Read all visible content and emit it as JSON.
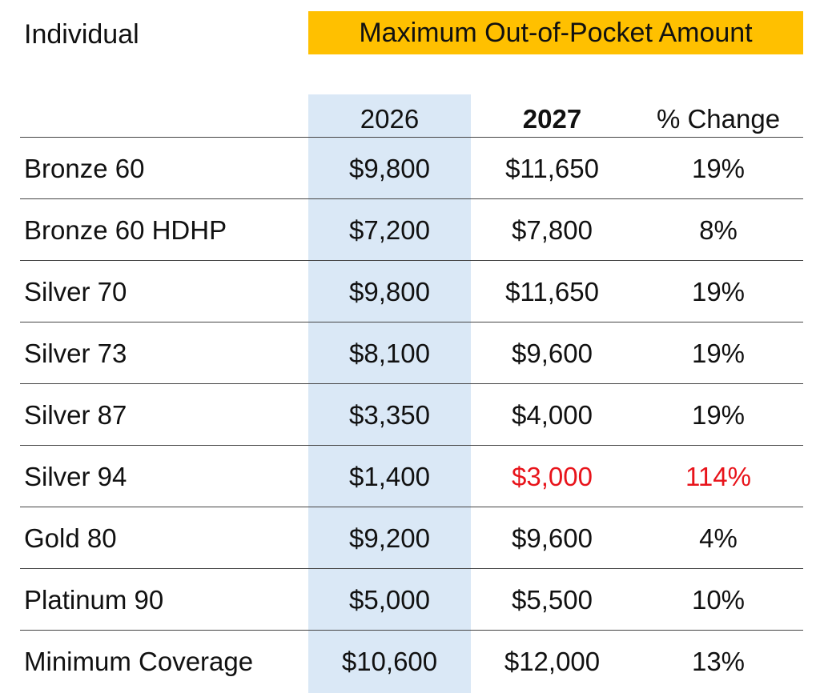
{
  "chart_data": {
    "type": "table",
    "section_label": "Individual",
    "title": "Maximum Out-of-Pocket Amount",
    "columns": [
      "",
      "2026",
      "2027",
      "% Change"
    ],
    "rows": [
      {
        "plan": "Bronze 60",
        "y2026": "$9,800",
        "y2027": "$11,650",
        "change": "19%",
        "highlight": false
      },
      {
        "plan": "Bronze 60 HDHP",
        "y2026": "$7,200",
        "y2027": "$7,800",
        "change": "8%",
        "highlight": false
      },
      {
        "plan": "Silver 70",
        "y2026": "$9,800",
        "y2027": "$11,650",
        "change": "19%",
        "highlight": false
      },
      {
        "plan": "Silver 73",
        "y2026": "$8,100",
        "y2027": "$9,600",
        "change": "19%",
        "highlight": false
      },
      {
        "plan": "Silver 87",
        "y2026": "$3,350",
        "y2027": "$4,000",
        "change": "19%",
        "highlight": false
      },
      {
        "plan": "Silver 94",
        "y2026": "$1,400",
        "y2027": "$3,000",
        "change": "114%",
        "highlight": true
      },
      {
        "plan": "Gold 80",
        "y2026": "$9,200",
        "y2027": "$9,600",
        "change": "4%",
        "highlight": false
      },
      {
        "plan": "Platinum 90",
        "y2026": "$5,000",
        "y2027": "$5,500",
        "change": "10%",
        "highlight": false
      },
      {
        "plan": "Minimum Coverage",
        "y2026": "$10,600",
        "y2027": "$12,000",
        "change": "13%",
        "highlight": false
      }
    ]
  },
  "colors": {
    "banner": "#FFC000",
    "column_2026_shade": "#DAE8F6",
    "highlight_text": "#E8141B",
    "rule": "#444444"
  }
}
